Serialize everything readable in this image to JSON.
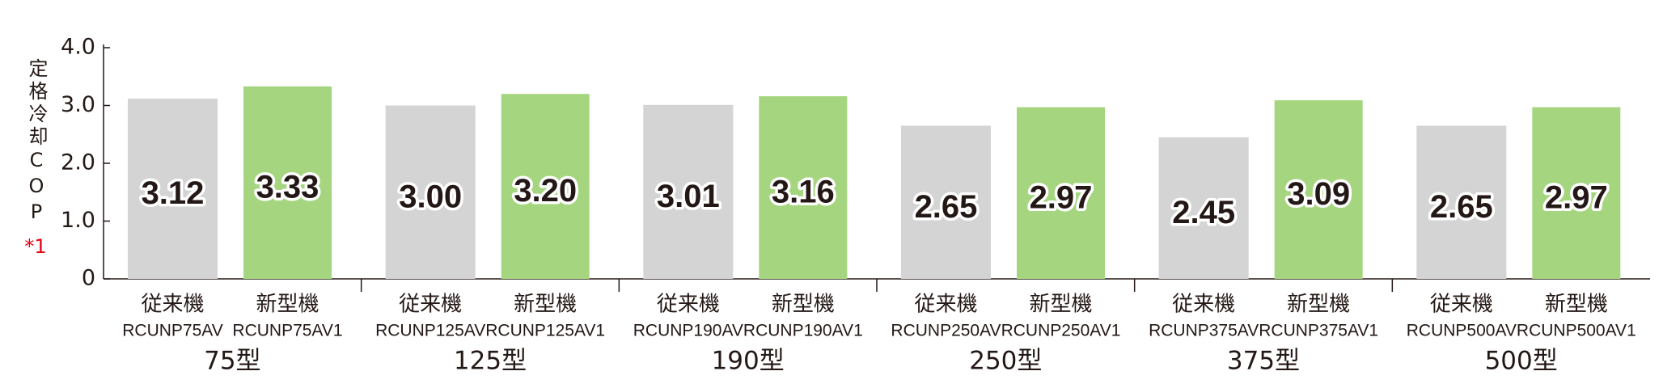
{
  "chart_data": {
    "type": "bar",
    "y_label": "定格冷却COP",
    "y_label_note": "*1",
    "categories": [
      "75型",
      "125型",
      "190型",
      "250型",
      "375型",
      "500型"
    ],
    "series": [
      {
        "name": "従来機",
        "color": "#d4d4d4",
        "models": [
          "RCUNP75AV",
          "RCUNP125AV",
          "RCUNP190AV",
          "RCUNP250AV",
          "RCUNP375AV",
          "RCUNP500AV"
        ],
        "values": [
          3.12,
          3.0,
          3.01,
          2.65,
          2.45,
          2.65
        ],
        "value_labels": [
          "3.12",
          "3.00",
          "3.01",
          "2.65",
          "2.45",
          "2.65"
        ]
      },
      {
        "name": "新型機",
        "color": "#a6d580",
        "models": [
          "RCUNP75AV1",
          "RCUNP125AV1",
          "RCUNP190AV1",
          "RCUNP250AV1",
          "RCUNP375AV1",
          "RCUNP500AV1"
        ],
        "values": [
          3.33,
          3.2,
          3.16,
          2.97,
          3.09,
          2.97
        ],
        "value_labels": [
          "3.33",
          "3.20",
          "3.16",
          "2.97",
          "3.09",
          "2.97"
        ]
      }
    ],
    "ylim": [
      0,
      4.0
    ],
    "yticks": [
      0,
      {
        "value": 1.0,
        "label": "1.0"
      },
      {
        "value": 2.0,
        "label": "2.0"
      },
      {
        "value": 3.0,
        "label": "3.0"
      },
      {
        "value": 4.0,
        "label": "4.0"
      }
    ],
    "grid": false
  }
}
